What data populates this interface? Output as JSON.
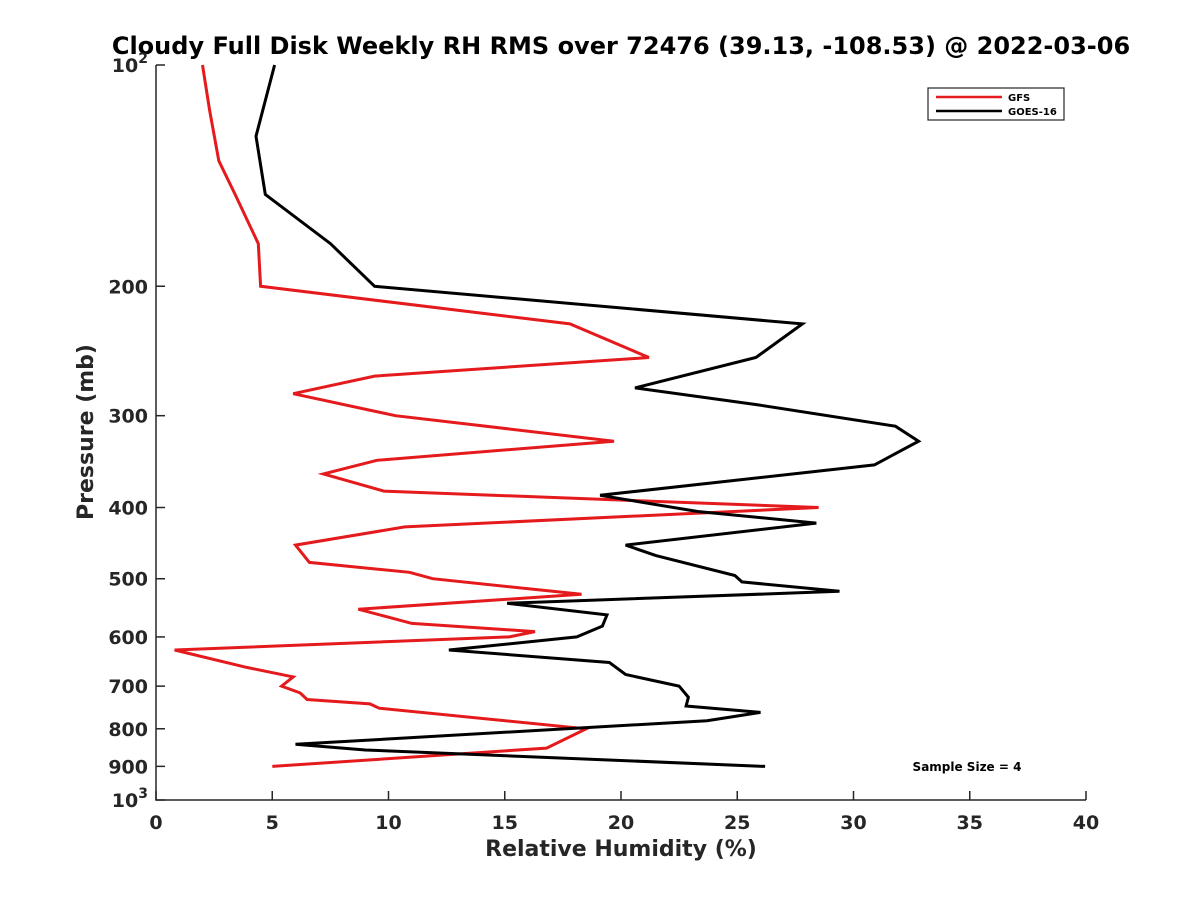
{
  "chart_data": {
    "type": "line",
    "title": "Cloudy Full Disk Weekly RH RMS over 72476 (39.13, -108.53) @ 2022-03-06",
    "xlabel": "Relative Humidity (%)",
    "ylabel": "Pressure (mb)",
    "xlim": [
      0,
      40
    ],
    "ylim": [
      100,
      1000
    ],
    "y_scale": "log",
    "y_reversed": true,
    "x_ticks": [
      "0",
      "5",
      "10",
      "15",
      "20",
      "25",
      "30",
      "35",
      "40"
    ],
    "y_ticks": [
      {
        "value": 100,
        "label": "10",
        "sup": "2"
      },
      {
        "value": 200,
        "label": "200",
        "sup": ""
      },
      {
        "value": 300,
        "label": "300",
        "sup": ""
      },
      {
        "value": 400,
        "label": "400",
        "sup": ""
      },
      {
        "value": 500,
        "label": "500",
        "sup": ""
      },
      {
        "value": 600,
        "label": "600",
        "sup": ""
      },
      {
        "value": 700,
        "label": "700",
        "sup": ""
      },
      {
        "value": 800,
        "label": "800",
        "sup": ""
      },
      {
        "value": 900,
        "label": "900",
        "sup": ""
      },
      {
        "value": 1000,
        "label": "10",
        "sup": "3"
      }
    ],
    "legend_position": "top-right",
    "grid": false,
    "series": [
      {
        "name": "GFS",
        "color": "#e41a1c",
        "points": [
          [
            2.0,
            100
          ],
          [
            2.3,
            115
          ],
          [
            2.7,
            135
          ],
          [
            3.4,
            150
          ],
          [
            4.4,
            175
          ],
          [
            4.5,
            200
          ],
          [
            17.8,
            225
          ],
          [
            21.2,
            250
          ],
          [
            9.4,
            265
          ],
          [
            5.9,
            280
          ],
          [
            10.3,
            300
          ],
          [
            19.7,
            325
          ],
          [
            9.5,
            345
          ],
          [
            7.2,
            360
          ],
          [
            9.8,
            380
          ],
          [
            28.5,
            400
          ],
          [
            10.7,
            425
          ],
          [
            6.0,
            450
          ],
          [
            6.6,
            475
          ],
          [
            10.9,
            490
          ],
          [
            11.9,
            500
          ],
          [
            18.3,
            525
          ],
          [
            8.7,
            550
          ],
          [
            11.0,
            575
          ],
          [
            16.3,
            590
          ],
          [
            15.2,
            600
          ],
          [
            0.8,
            625
          ],
          [
            3.9,
            660
          ],
          [
            5.9,
            680
          ],
          [
            5.4,
            700
          ],
          [
            6.2,
            715
          ],
          [
            6.5,
            730
          ],
          [
            9.2,
            740
          ],
          [
            9.6,
            750
          ],
          [
            18.5,
            800
          ],
          [
            16.8,
            850
          ],
          [
            5.0,
            900
          ]
        ]
      },
      {
        "name": "GOES-16",
        "color": "#000000",
        "points": [
          [
            5.1,
            100
          ],
          [
            4.3,
            125
          ],
          [
            4.7,
            150
          ],
          [
            7.5,
            175
          ],
          [
            9.4,
            200
          ],
          [
            27.8,
            225
          ],
          [
            25.8,
            250
          ],
          [
            20.6,
            275
          ],
          [
            25.9,
            290
          ],
          [
            31.8,
            310
          ],
          [
            32.8,
            325
          ],
          [
            30.9,
            350
          ],
          [
            19.1,
            385
          ],
          [
            23.3,
            405
          ],
          [
            28.4,
            420
          ],
          [
            20.2,
            450
          ],
          [
            21.5,
            465
          ],
          [
            24.9,
            495
          ],
          [
            25.2,
            505
          ],
          [
            29.4,
            520
          ],
          [
            15.1,
            540
          ],
          [
            19.4,
            560
          ],
          [
            19.2,
            580
          ],
          [
            18.1,
            600
          ],
          [
            12.6,
            625
          ],
          [
            19.5,
            650
          ],
          [
            20.2,
            675
          ],
          [
            22.5,
            700
          ],
          [
            22.9,
            725
          ],
          [
            22.8,
            745
          ],
          [
            26.0,
            760
          ],
          [
            23.7,
            780
          ],
          [
            6.0,
            840
          ],
          [
            9.0,
            855
          ],
          [
            26.2,
            900
          ]
        ]
      }
    ],
    "annotation": "Sample Size = 4"
  }
}
